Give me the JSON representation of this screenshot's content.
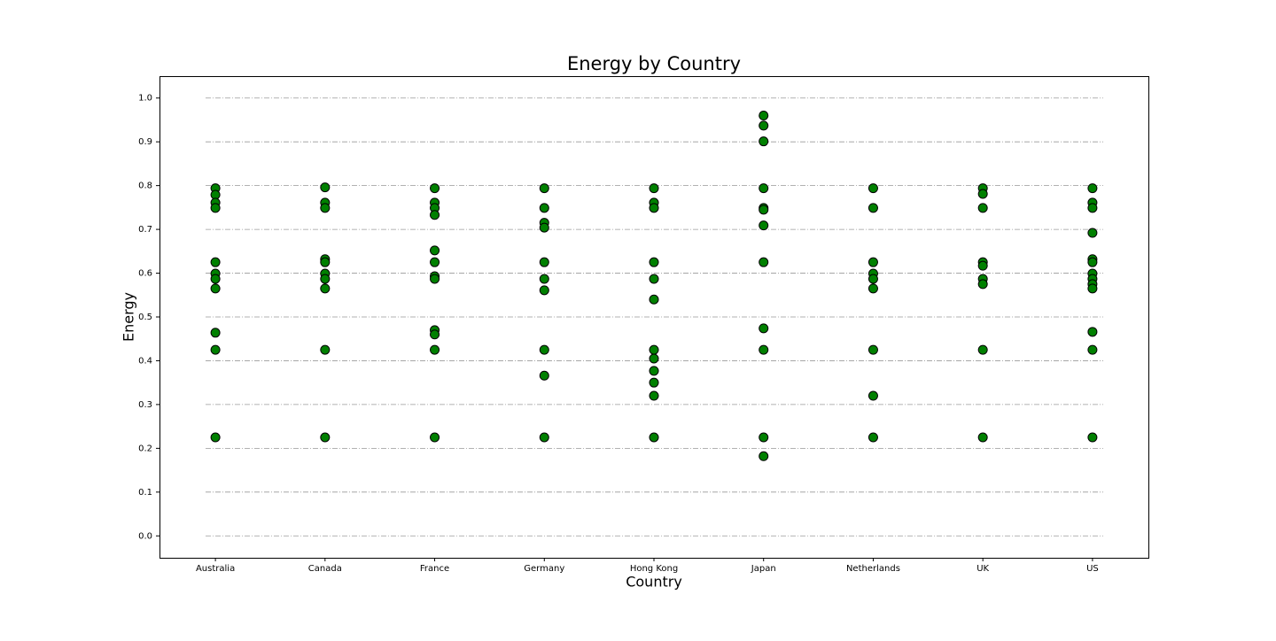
{
  "chart_data": {
    "type": "strip",
    "title": "Energy by Country",
    "x_label": "Country",
    "y_label": "Energy",
    "categories": [
      "Australia",
      "Canada",
      "France",
      "Germany",
      "Hong Kong",
      "Japan",
      "Netherlands",
      "UK",
      "US"
    ],
    "values": [
      [
        0.794,
        0.779,
        0.761,
        0.749,
        0.625,
        0.599,
        0.587,
        0.565,
        0.464,
        0.425,
        0.225
      ],
      [
        0.796,
        0.761,
        0.749,
        0.632,
        0.625,
        0.599,
        0.587,
        0.565,
        0.425,
        0.225
      ],
      [
        0.794,
        0.761,
        0.749,
        0.733,
        0.652,
        0.625,
        0.593,
        0.587,
        0.47,
        0.46,
        0.425,
        0.225
      ],
      [
        0.794,
        0.749,
        0.715,
        0.704,
        0.625,
        0.587,
        0.561,
        0.425,
        0.366,
        0.225
      ],
      [
        0.794,
        0.761,
        0.749,
        0.625,
        0.587,
        0.54,
        0.425,
        0.405,
        0.377,
        0.35,
        0.32,
        0.225
      ],
      [
        0.96,
        0.937,
        0.901,
        0.794,
        0.749,
        0.745,
        0.709,
        0.625,
        0.474,
        0.425,
        0.225,
        0.182
      ],
      [
        0.794,
        0.749,
        0.625,
        0.599,
        0.587,
        0.565,
        0.425,
        0.32,
        0.225
      ],
      [
        0.794,
        0.781,
        0.749,
        0.625,
        0.617,
        0.587,
        0.575,
        0.425,
        0.225
      ],
      [
        0.794,
        0.761,
        0.749,
        0.692,
        0.632,
        0.625,
        0.599,
        0.587,
        0.575,
        0.565,
        0.466,
        0.425,
        0.225
      ]
    ],
    "color": "#008000",
    "edge_color": "#000000",
    "ylim": [
      -0.05,
      1.05
    ],
    "yticks": [
      {
        "value": 0,
        "label": "0.0"
      },
      0.1,
      0.2,
      0.3,
      0.4,
      0.5,
      0.6,
      0.7,
      0.8,
      0.9,
      {
        "value": 1,
        "label": "1.0"
      }
    ],
    "grid": true
  }
}
